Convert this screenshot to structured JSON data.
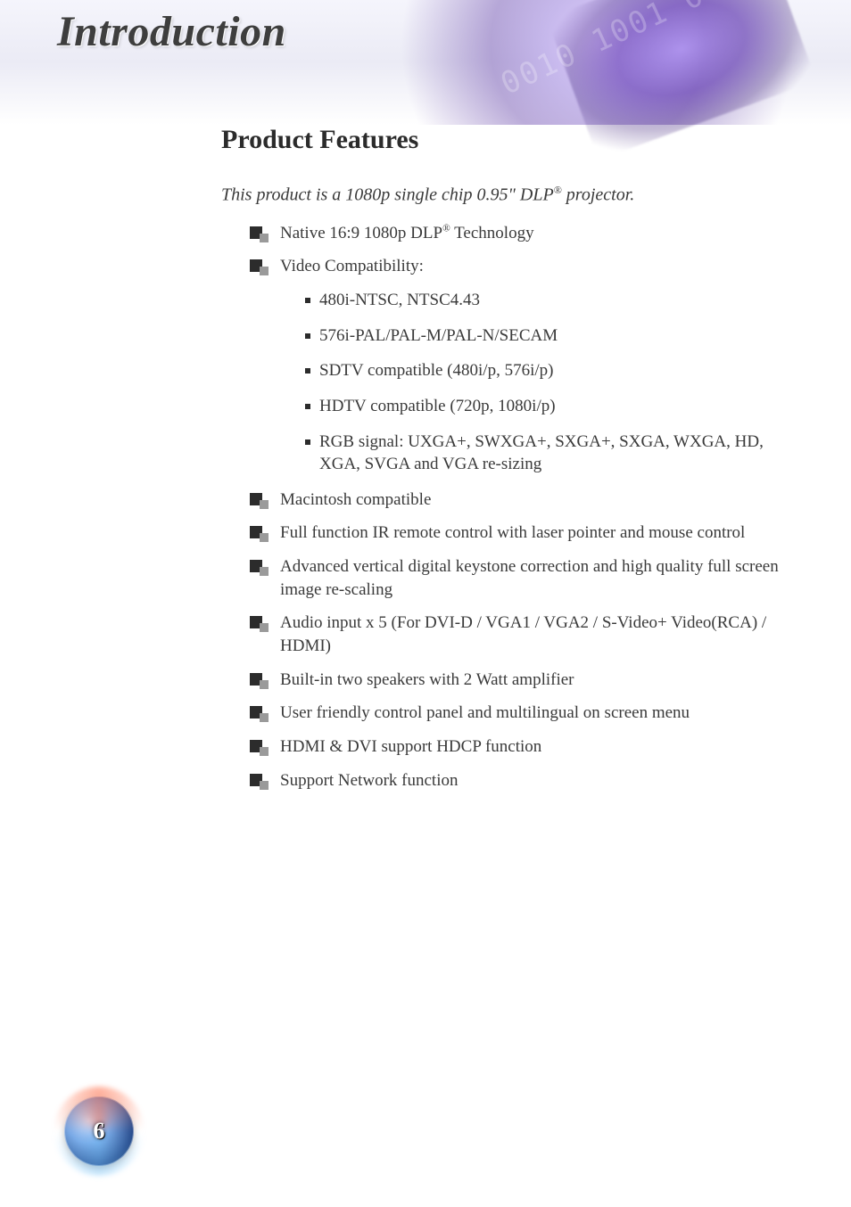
{
  "header": {
    "chapter_title": "Introduction",
    "band_colors": {
      "accent_purple": "#7a5ab4",
      "light": "#ebebf5"
    }
  },
  "section": {
    "title": "Product Features",
    "intro": "This product is a 1080p single chip 0.95\" DLP® projector."
  },
  "features": [
    {
      "text": "Native 16:9 1080p DLP® Technology"
    },
    {
      "text": "Video Compatibility:",
      "sub": [
        "480i-NTSC, NTSC4.43",
        "576i-PAL/PAL-M/PAL-N/SECAM",
        "SDTV compatible (480i/p, 576i/p)",
        "HDTV compatible (720p, 1080i/p)",
        "RGB signal: UXGA+, SWXGA+, SXGA+, SXGA, WXGA, HD, XGA, SVGA and VGA re-sizing"
      ]
    },
    {
      "text": "Macintosh compatible"
    },
    {
      "text": "Full function IR remote control with laser pointer and mouse control"
    },
    {
      "text": "Advanced vertical digital keystone correction and high quality full screen image re-scaling"
    },
    {
      "text": "Audio input x 5 (For DVI-D / VGA1 / VGA2 / S-Video+ Video(RCA) / HDMI)"
    },
    {
      "text": "Built-in two speakers with 2 Watt amplifier"
    },
    {
      "text": "User friendly control panel and multilingual on screen menu"
    },
    {
      "text": "HDMI & DVI support HDCP function"
    },
    {
      "text": "Support Network function"
    }
  ],
  "page": {
    "number": "6"
  },
  "typography": {
    "chapter_title_fontsize": 48,
    "section_title_fontsize": 30,
    "body_fontsize": 19,
    "font_family": "Palatino Linotype, Book Antiqua, Palatino, serif",
    "text_color": "#3a3a3a",
    "bullet_dark": "#2c2c2c",
    "bullet_light": "#9a9a9a"
  }
}
